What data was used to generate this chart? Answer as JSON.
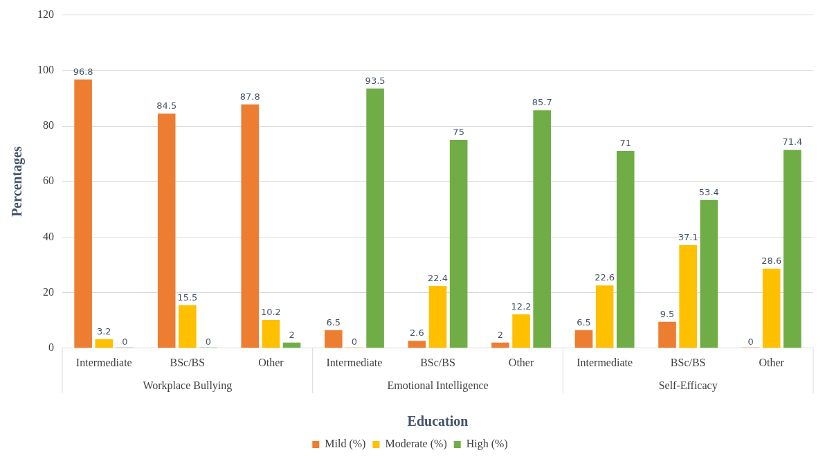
{
  "chart_data": {
    "type": "bar",
    "categories": [
      "Intermediate",
      "BSc/BS",
      "Other",
      "Intermediate",
      "BSc/BS",
      "Other",
      "Intermediate",
      "BSc/BS",
      "Other"
    ],
    "series": [
      {
        "name": "Mild (%)",
        "color": "#ed7d31",
        "values": [
          96.8,
          84.5,
          87.8,
          6.5,
          2.6,
          2,
          6.5,
          9.5,
          0
        ]
      },
      {
        "name": "Moderate (%)",
        "color": "#ffc000",
        "values": [
          3.2,
          15.5,
          10.2,
          0,
          22.4,
          12.2,
          22.6,
          37.1,
          28.6
        ]
      },
      {
        "name": "High (%)",
        "color": "#70ad47",
        "values": [
          0,
          0,
          2,
          93.5,
          75,
          85.7,
          71,
          53.4,
          71.4
        ]
      }
    ],
    "annotations": [
      "Workplace Bullying",
      "Emotional Intelligence",
      "Self-Efficacy"
    ],
    "xlabel": "Education",
    "ylabel": "Percentages",
    "ylim": [
      0,
      120
    ],
    "yticks": [
      0,
      20,
      40,
      60,
      80,
      100,
      120
    ],
    "grid": "y",
    "legend": "bottom",
    "data_labels": true
  }
}
